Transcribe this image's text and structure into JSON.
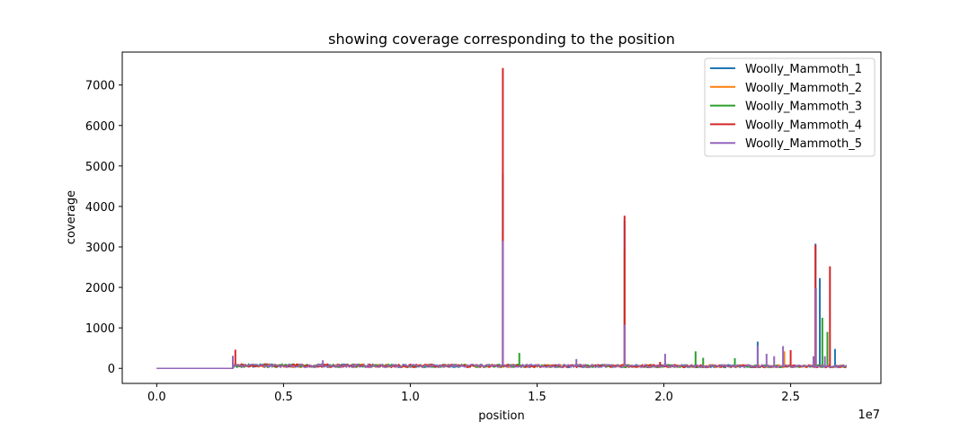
{
  "chart_data": {
    "type": "line",
    "title": "showing coverage corresponding to the position",
    "xlabel": "position",
    "ylabel": "coverage",
    "x_offset_label": "1e7",
    "xlim": [
      -1360000,
      28560000
    ],
    "ylim": [
      -372,
      7814
    ],
    "x_ticks": [
      0,
      5000000,
      10000000,
      15000000,
      20000000,
      25000000
    ],
    "x_tick_labels": [
      "0.0",
      "0.5",
      "1.0",
      "1.5",
      "2.0",
      "2.5"
    ],
    "y_ticks": [
      0,
      1000,
      2000,
      3000,
      4000,
      5000,
      6000,
      7000
    ],
    "y_tick_labels": [
      "0",
      "1000",
      "2000",
      "3000",
      "4000",
      "5000",
      "6000",
      "7000"
    ],
    "legend_position": "top-right",
    "grid": false,
    "baseline": {
      "x": [
        0,
        3000000,
        3050000,
        27200000
      ],
      "y": [
        0,
        0,
        80,
        60
      ]
    },
    "series": [
      {
        "name": "Woolly_Mammoth_1",
        "color": "#1f77b4",
        "spikes": [
          [
            3000000,
            290
          ],
          [
            13650000,
            4800
          ],
          [
            18450000,
            3650
          ],
          [
            23700000,
            660
          ],
          [
            25980000,
            3080
          ],
          [
            26150000,
            2230
          ],
          [
            26750000,
            480
          ]
        ]
      },
      {
        "name": "Woolly_Mammoth_2",
        "color": "#ff7f0e",
        "spikes": [
          [
            13650000,
            3400
          ],
          [
            18450000,
            2900
          ],
          [
            24750000,
            420
          ]
        ]
      },
      {
        "name": "Woolly_Mammoth_3",
        "color": "#2ca02c",
        "spikes": [
          [
            14300000,
            380
          ],
          [
            21250000,
            420
          ],
          [
            21550000,
            260
          ],
          [
            22800000,
            250
          ],
          [
            26250000,
            1250
          ],
          [
            26450000,
            900
          ]
        ]
      },
      {
        "name": "Woolly_Mammoth_4",
        "color": "#d62728",
        "spikes": [
          [
            3100000,
            460
          ],
          [
            13650000,
            7420
          ],
          [
            18450000,
            3770
          ],
          [
            19850000,
            160
          ],
          [
            25000000,
            450
          ],
          [
            25980000,
            3050
          ],
          [
            26550000,
            2520
          ]
        ]
      },
      {
        "name": "Woolly_Mammoth_5",
        "color": "#9467bd",
        "spikes": [
          [
            3000000,
            310
          ],
          [
            6550000,
            200
          ],
          [
            13650000,
            3150
          ],
          [
            16550000,
            230
          ],
          [
            18450000,
            1080
          ],
          [
            20050000,
            360
          ],
          [
            23700000,
            560
          ],
          [
            24050000,
            360
          ],
          [
            24350000,
            300
          ],
          [
            24700000,
            550
          ],
          [
            25900000,
            300
          ],
          [
            26000000,
            1980
          ],
          [
            26350000,
            300
          ]
        ]
      }
    ]
  }
}
